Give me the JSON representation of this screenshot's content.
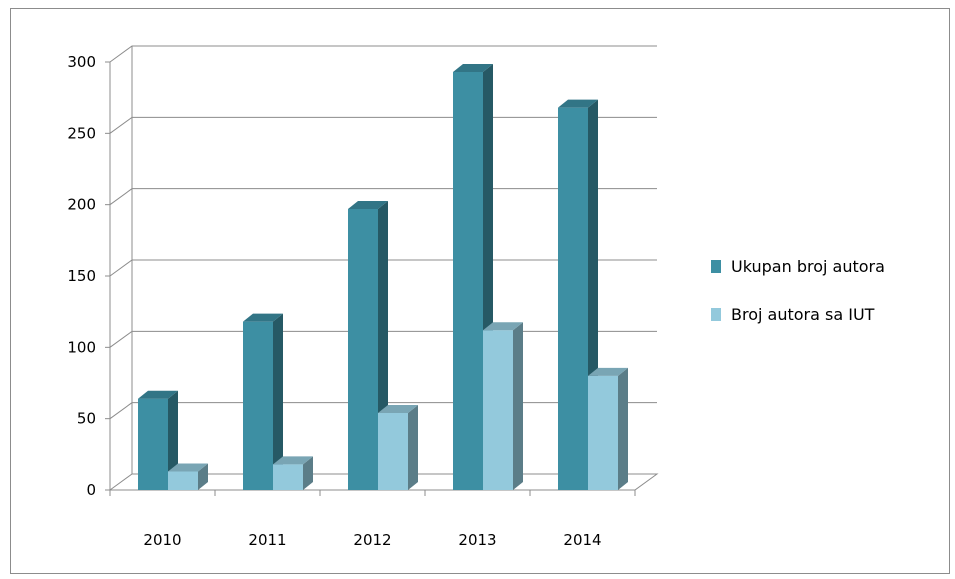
{
  "chart_data": {
    "type": "bar",
    "title": "",
    "xlabel": "",
    "ylabel": "",
    "categories": [
      "2010",
      "2011",
      "2012",
      "2013",
      "2014"
    ],
    "series": [
      {
        "name": "Ukupan broj autora",
        "values": [
          64,
          118,
          197,
          293,
          268
        ],
        "color": "#3d8fa3"
      },
      {
        "name": "Broj autora sa IUT",
        "values": [
          13,
          18,
          54,
          112,
          80
        ],
        "color": "#93c9dc"
      }
    ],
    "ylim": [
      0,
      300
    ],
    "yticks": [
      0,
      50,
      100,
      150,
      200,
      250,
      300
    ],
    "grid": true,
    "legend_position": "right",
    "style": "3d-clustered-column"
  }
}
